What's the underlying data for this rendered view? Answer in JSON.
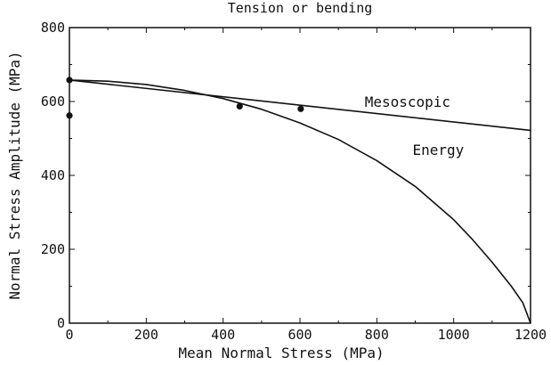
{
  "chart_data": {
    "type": "line",
    "title": "Tension or bending",
    "xlabel": "Mean Normal Stress (MPa)",
    "ylabel": "Normal Stress Amplitude (MPa)",
    "xlim": [
      0,
      1200
    ],
    "ylim": [
      0,
      800
    ],
    "x_ticks": [
      0,
      200,
      400,
      600,
      800,
      1000,
      1200
    ],
    "y_ticks": [
      0,
      200,
      400,
      600,
      800
    ],
    "x_tick_labels": [
      "0",
      "200",
      "400",
      "600",
      "800",
      "1000",
      "1200"
    ],
    "y_tick_labels": [
      "0",
      "200",
      "400",
      "600",
      "800"
    ],
    "grid": false,
    "series": [
      {
        "name": "Mesoscopic",
        "type": "line",
        "x": [
          0,
          1200
        ],
        "y": [
          658,
          522
        ]
      },
      {
        "name": "Energy",
        "type": "line",
        "x": [
          0,
          100,
          200,
          300,
          400,
          500,
          600,
          700,
          800,
          900,
          1000,
          1050,
          1100,
          1150,
          1180,
          1200
        ],
        "y": [
          658,
          655,
          646,
          630,
          608,
          579,
          542,
          497,
          440,
          370,
          280,
          225,
          165,
          100,
          55,
          0
        ]
      },
      {
        "type": "scatter",
        "x": [
          0,
          0,
          443,
          602
        ],
        "y": [
          658,
          562,
          587,
          580
        ]
      }
    ]
  }
}
